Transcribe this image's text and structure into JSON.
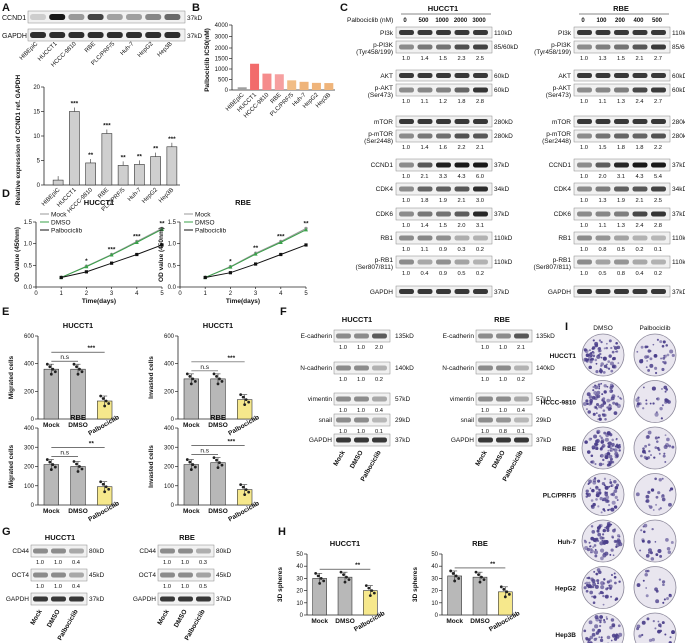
{
  "panels": {
    "A": "A",
    "B": "B",
    "C": "C",
    "D": "D",
    "E": "E",
    "F": "F",
    "G": "G",
    "H": "H",
    "I": "I"
  },
  "panel_a": {
    "blot_rows": [
      "CCND1",
      "GAPDH"
    ],
    "blot_sizes": [
      "37kD",
      "37kD"
    ],
    "chart_data": {
      "type": "bar",
      "categories": [
        "HIBEpiC",
        "HUCCT1",
        "HCCC-9810",
        "RBE",
        "PLC/PRF/5",
        "Huh-7",
        "HepG2",
        "Hep3B"
      ],
      "values": [
        1.0,
        15.0,
        4.5,
        10.5,
        4.0,
        4.2,
        5.8,
        7.8
      ],
      "significance": [
        "",
        "***",
        "**",
        "***",
        "**",
        "**",
        "**",
        "***"
      ],
      "ylabel": "Relative expression of CCND1 ref. GAPDH",
      "ylim": [
        0,
        20
      ],
      "yticks": [
        "0",
        "5",
        "10",
        "15",
        "20"
      ]
    }
  },
  "panel_b": {
    "chart_data": {
      "type": "bar",
      "categories": [
        "HIBEpiC",
        "HUCCT1",
        "HCCC-9810",
        "RBE",
        "PLC/PRF/5",
        "Huh-7",
        "HepG2",
        "Hep3B"
      ],
      "values": [
        130,
        1250,
        780,
        750,
        460,
        390,
        340,
        330
      ],
      "colors": [
        "#a0a0a0",
        "#f26b6b",
        "#f58c8c",
        "#f6a0a0",
        "#f1bd86",
        "#efb47a",
        "#efb47a",
        "#efb47a"
      ],
      "ylabel": "Palbociclib IC50(nM)",
      "ylim": [
        0,
        4000
      ],
      "yticks": [
        "0",
        "500",
        "1000",
        "1500",
        "2000",
        "3000",
        "4000"
      ]
    }
  },
  "panel_c": {
    "conc_label": "Palbociclib (nM)",
    "left": {
      "title": "HUCCT1",
      "doses": [
        "0",
        "500",
        "1000",
        "2000",
        "3000"
      ],
      "rows": [
        {
          "name": "PI3k",
          "size": "110kD",
          "vals": []
        },
        {
          "name": "p-PI3K (Tyr458/199)",
          "size": "85/60kD",
          "vals": [
            "1.0",
            "1.4",
            "1.5",
            "2.3",
            "2.5"
          ]
        },
        {
          "name": "AKT",
          "size": "60kD",
          "vals": []
        },
        {
          "name": "p-AKT (Ser473)",
          "size": "60kD",
          "vals": [
            "1.0",
            "1.1",
            "1.2",
            "1.8",
            "2.8"
          ]
        },
        {
          "name": "mTOR",
          "size": "280kD",
          "vals": []
        },
        {
          "name": "p-mTOR (Ser2448)",
          "size": "280kD",
          "vals": [
            "1.0",
            "1.4",
            "1.6",
            "2.2",
            "2.1"
          ]
        },
        {
          "name": "CCND1",
          "size": "37kD",
          "vals": [
            "1.0",
            "2.1",
            "3.3",
            "4.3",
            "6.0"
          ]
        },
        {
          "name": "CDK4",
          "size": "34kD",
          "vals": [
            "1.0",
            "1.8",
            "1.9",
            "2.1",
            "3.0"
          ]
        },
        {
          "name": "CDK6",
          "size": "37kD",
          "vals": [
            "1.0",
            "1.4",
            "1.5",
            "2.0",
            "3.1"
          ]
        },
        {
          "name": "RB1",
          "size": "110kD",
          "vals": [
            "1.0",
            "1.1",
            "0.9",
            "0.3",
            "0.2"
          ]
        },
        {
          "name": "p-RB1 (Ser807/811)",
          "size": "110kD",
          "vals": [
            "1.0",
            "0.4",
            "0.9",
            "0.5",
            "0.2"
          ]
        },
        {
          "name": "GAPDH",
          "size": "37kD",
          "vals": []
        }
      ]
    },
    "right": {
      "title": "RBE",
      "doses": [
        "0",
        "100",
        "200",
        "400",
        "500"
      ],
      "rows": [
        {
          "name": "PI3k",
          "size": "110kD",
          "vals": []
        },
        {
          "name": "p-PI3K (Tyr458/199)",
          "size": "85/60kD",
          "vals": [
            "1.0",
            "1.3",
            "1.5",
            "2.1",
            "2.7"
          ]
        },
        {
          "name": "AKT",
          "size": "60kD",
          "vals": []
        },
        {
          "name": "p-AKT (Ser473)",
          "size": "60kD",
          "vals": [
            "1.0",
            "1.1",
            "1.3",
            "2.4",
            "2.7"
          ]
        },
        {
          "name": "mTOR",
          "size": "280kD",
          "vals": []
        },
        {
          "name": "p-mTOR (Ser2448)",
          "size": "280kD",
          "vals": [
            "1.0",
            "1.5",
            "1.8",
            "1.8",
            "2.2"
          ]
        },
        {
          "name": "CCND1",
          "size": "37kD",
          "vals": [
            "1.0",
            "2.0",
            "3.1",
            "4.3",
            "5.4"
          ]
        },
        {
          "name": "CDK4",
          "size": "34kD",
          "vals": [
            "1.0",
            "1.3",
            "1.9",
            "2.1",
            "2.5"
          ]
        },
        {
          "name": "CDK6",
          "size": "37kD",
          "vals": [
            "1.0",
            "1.1",
            "1.3",
            "2.4",
            "2.8"
          ]
        },
        {
          "name": "RB1",
          "size": "110kD",
          "vals": [
            "1.0",
            "0.8",
            "0.5",
            "0.2",
            "0.1"
          ]
        },
        {
          "name": "p-RB1 (Ser807/811)",
          "size": "110kD",
          "vals": [
            "1.0",
            "0.5",
            "0.8",
            "0.4",
            "0.2"
          ]
        },
        {
          "name": "GAPDH",
          "size": "37kD",
          "vals": []
        }
      ]
    }
  },
  "panel_d": {
    "legend": [
      "Mock",
      "DMSO",
      "Palbociclib"
    ],
    "xlabel": "Time(days)",
    "ylabel": "OD value (450nm)",
    "chart_data": [
      {
        "type": "line",
        "title": "HUCCT1",
        "x": [
          1,
          2,
          3,
          4,
          5
        ],
        "xlim": [
          0,
          5
        ],
        "ylim": [
          0,
          1.5
        ],
        "yticks": [
          "0.0",
          "0.5",
          "1.0",
          "1.5"
        ],
        "series": [
          {
            "name": "Mock",
            "values": [
              0.22,
              0.48,
              0.75,
              1.05,
              1.35
            ]
          },
          {
            "name": "DMSO",
            "values": [
              0.22,
              0.47,
              0.74,
              1.03,
              1.33
            ]
          },
          {
            "name": "Palbociclib",
            "values": [
              0.22,
              0.35,
              0.55,
              0.75,
              0.97
            ]
          }
        ],
        "significance": [
          "",
          "*",
          "***",
          "***",
          "**"
        ]
      },
      {
        "type": "line",
        "title": "RBE",
        "x": [
          1,
          2,
          3,
          4,
          5
        ],
        "xlim": [
          0,
          5
        ],
        "ylim": [
          0,
          1.5
        ],
        "yticks": [
          "0.0",
          "0.5",
          "1.0",
          "1.5"
        ],
        "series": [
          {
            "name": "Mock",
            "values": [
              0.22,
              0.47,
              0.78,
              1.05,
              1.35
            ]
          },
          {
            "name": "DMSO",
            "values": [
              0.22,
              0.46,
              0.76,
              1.03,
              1.32
            ]
          },
          {
            "name": "Palbociclib",
            "values": [
              0.22,
              0.33,
              0.53,
              0.75,
              0.97
            ]
          }
        ],
        "significance": [
          "",
          "*",
          "**",
          "***",
          "**"
        ]
      }
    ]
  },
  "panel_e": {
    "chart_data": [
      {
        "type": "bar",
        "title": "HUCCT1",
        "ylabel": "Migrated cells",
        "categories": [
          "Mock",
          "DMSO",
          "Palbociclib"
        ],
        "values": [
          360,
          360,
          130
        ],
        "ylim": [
          0,
          600
        ],
        "yticks": [
          "0",
          "200",
          "400",
          "600"
        ],
        "sig_ns": "n.s",
        "sig": "***"
      },
      {
        "type": "bar",
        "title": "HUCCT1",
        "ylabel": "Invasted cells",
        "categories": [
          "Mock",
          "DMSO",
          "Palbociclib"
        ],
        "values": [
          290,
          290,
          140
        ],
        "ylim": [
          0,
          600
        ],
        "yticks": [
          "0",
          "200",
          "400",
          "600"
        ],
        "sig_ns": "n.s",
        "sig": "***"
      },
      {
        "type": "bar",
        "title": "RBE",
        "ylabel": "Migrated cells",
        "categories": [
          "Mock",
          "DMSO",
          "Palbociclib"
        ],
        "values": [
          210,
          200,
          95
        ],
        "ylim": [
          0,
          400
        ],
        "yticks": [
          "0",
          "100",
          "200",
          "300",
          "400"
        ],
        "sig_ns": "n.s",
        "sig": "**"
      },
      {
        "type": "bar",
        "title": "RBE",
        "ylabel": "Invasted cells",
        "categories": [
          "Mock",
          "DMSO",
          "Palbociclib"
        ],
        "values": [
          210,
          220,
          80
        ],
        "ylim": [
          0,
          400
        ],
        "yticks": [
          "0",
          "100",
          "200",
          "300",
          "400"
        ],
        "sig_ns": "n.s",
        "sig": "***"
      }
    ]
  },
  "panel_f": {
    "left_title": "HUCCT1",
    "right_title": "RBE",
    "lanes": [
      "Mock",
      "DMSO",
      "Palbociclib"
    ],
    "rows": [
      {
        "name": "E-cadherin",
        "size": "135kD",
        "left": [
          "1.0",
          "1.0",
          "2.0"
        ],
        "right": [
          "1.0",
          "1.0",
          "2.1"
        ]
      },
      {
        "name": "N-cadherin",
        "size": "140kD",
        "left": [
          "1.0",
          "1.0",
          "0.2"
        ],
        "right": [
          "1.0",
          "1.0",
          "0.2"
        ]
      },
      {
        "name": "vimentin",
        "size": "57kD",
        "left": [
          "1.0",
          "1.0",
          "0.4"
        ],
        "right": [
          "1.0",
          "1.0",
          "0.4"
        ]
      },
      {
        "name": "snail",
        "size": "29kD",
        "left": [
          "1.0",
          "1.0",
          "0.1"
        ],
        "right": [
          "1.0",
          "0.8",
          "0.1"
        ]
      },
      {
        "name": "GAPDH",
        "size": "37kD",
        "left": [],
        "right": []
      }
    ]
  },
  "panel_g": {
    "left_title": "HUCCT1",
    "right_title": "RBE",
    "lanes": [
      "Mock",
      "DMSO",
      "Palbociclib"
    ],
    "rows": [
      {
        "name": "CD44",
        "size": "80kD",
        "left": [
          "1.0",
          "1.0",
          "0.4"
        ],
        "right": [
          "1.0",
          "1.0",
          "0.3"
        ]
      },
      {
        "name": "OCT4",
        "size": "45kD",
        "left": [
          "1.0",
          "1.0",
          "0.4"
        ],
        "right": [
          "1.0",
          "1.0",
          "0.5"
        ]
      },
      {
        "name": "GAPDH",
        "size": "37kD",
        "left": [],
        "right": []
      }
    ]
  },
  "panel_h": {
    "chart_data": [
      {
        "type": "bar",
        "title": "HUCCT1",
        "ylabel": "3D spheres",
        "categories": [
          "Mock",
          "DMSO",
          "Palbociclib"
        ],
        "values": [
          30,
          31,
          20
        ],
        "ylim": [
          0,
          50
        ],
        "yticks": [
          "0",
          "10",
          "20",
          "30",
          "40",
          "50"
        ],
        "sig": "**"
      },
      {
        "type": "bar",
        "title": "RBE",
        "ylabel": "3D spheres",
        "categories": [
          "Mock",
          "DMSO",
          "Palbociclib"
        ],
        "values": [
          32,
          31,
          19
        ],
        "ylim": [
          0,
          50
        ],
        "yticks": [
          "0",
          "10",
          "20",
          "30",
          "40",
          "50"
        ],
        "sig": "**"
      }
    ]
  },
  "panel_i": {
    "columns": [
      "DMSO",
      "Palbociclib"
    ],
    "rows": [
      "HUCCT1",
      "HCCC-9810",
      "RBE",
      "PLC/PRF/5",
      "Huh-7",
      "HepG2",
      "Hep3B"
    ],
    "density_dmso": [
      0.85,
      0.85,
      0.9,
      0.75,
      0.8,
      0.6,
      0.65
    ],
    "density_palbo": [
      0.4,
      0.3,
      0.35,
      0.25,
      0.25,
      0.2,
      0.25
    ]
  }
}
